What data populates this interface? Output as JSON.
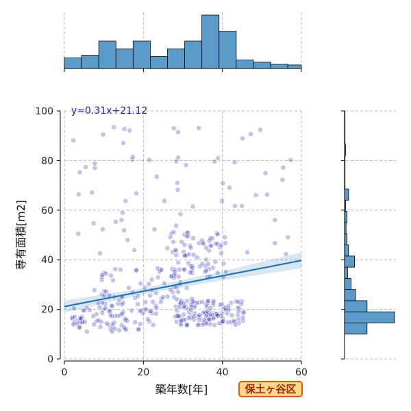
{
  "chart_data": {
    "type": "scatter",
    "xlabel": "築年数[年]",
    "ylabel": "専有面積[m2]",
    "xlim": [
      0,
      60
    ],
    "ylim": [
      0,
      100
    ],
    "xticks": [
      0,
      20,
      40,
      60
    ],
    "yticks": [
      0,
      20,
      40,
      60,
      80,
      100
    ],
    "grid": true,
    "regression": {
      "slope": 0.31,
      "intercept": 21.12,
      "label": "y=0.31x+21.12"
    },
    "x_histogram": {
      "bin_edges": [
        0,
        4.35,
        8.7,
        13.05,
        17.4,
        21.75,
        26.1,
        30.45,
        34.8,
        39.15,
        43.5,
        47.85,
        52.2,
        56.55,
        60
      ],
      "counts": [
        15,
        19,
        39,
        28,
        39,
        17,
        28,
        39,
        76,
        53,
        12,
        9,
        6,
        5
      ]
    },
    "y_histogram": {
      "bin_edges": [
        10,
        14.5,
        19,
        23.5,
        28,
        32.5,
        37,
        41.5,
        46,
        50.5,
        55,
        59.5,
        64,
        68.5,
        73,
        77.5,
        82,
        86.5,
        91,
        95.5,
        100
      ],
      "counts": [
        45,
        100,
        45,
        22,
        13,
        6,
        20,
        8,
        5,
        3,
        5,
        2,
        8,
        1,
        1,
        1,
        2,
        1,
        1,
        1
      ]
    },
    "points": []
  },
  "badge": {
    "label": "保土ヶ谷区"
  },
  "colors": {
    "points": "#2727b8",
    "line": "#1f77b4",
    "hist": "#5b9bc9",
    "band": "#1f77b4",
    "badge_bg": "#ffd78a",
    "badge_border": "#e8560c",
    "eq": "#1a1ad0"
  }
}
